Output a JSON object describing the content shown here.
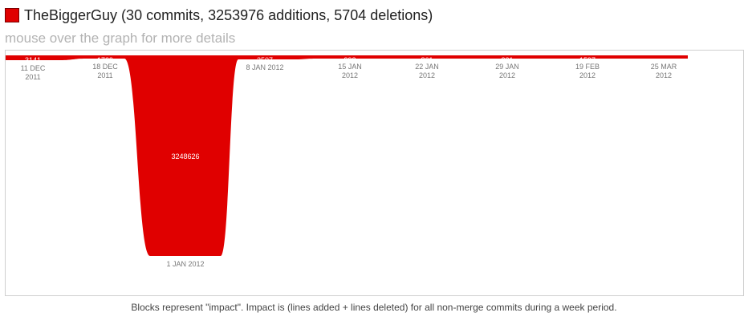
{
  "header": {
    "title": "TheBiggerGuy (30 commits, 3253976 additions, 5704 deletions)",
    "subtitle": "mouse over the graph for more details",
    "swatch_color": "#e00000"
  },
  "footer": {
    "text": "Blocks represent \"impact\". Impact is (lines added + lines deleted) for all non-merge commits during a week period."
  },
  "chart_data": {
    "type": "area",
    "style": "stream",
    "color": "#e00000",
    "points": [
      {
        "value": 3141,
        "date": [
          "11 DEC",
          "2011"
        ]
      },
      {
        "value": 1729,
        "date": [
          "18 DEC",
          "2011"
        ]
      },
      {
        "value": 3248626,
        "date": [
          "1 JAN 2012"
        ]
      },
      {
        "value": 2507,
        "date": [
          "8 JAN 2012"
        ]
      },
      {
        "value": 992,
        "date": [
          "15 JAN",
          "2012"
        ]
      },
      {
        "value": 861,
        "date": [
          "22 JAN",
          "2012"
        ]
      },
      {
        "value": 221,
        "date": [
          "29 JAN",
          "2012"
        ]
      },
      {
        "value": 1597,
        "date": [
          "19 FEB",
          "2012"
        ]
      },
      {
        "value": 0,
        "date": [
          "25 MAR",
          "2012"
        ]
      }
    ]
  }
}
